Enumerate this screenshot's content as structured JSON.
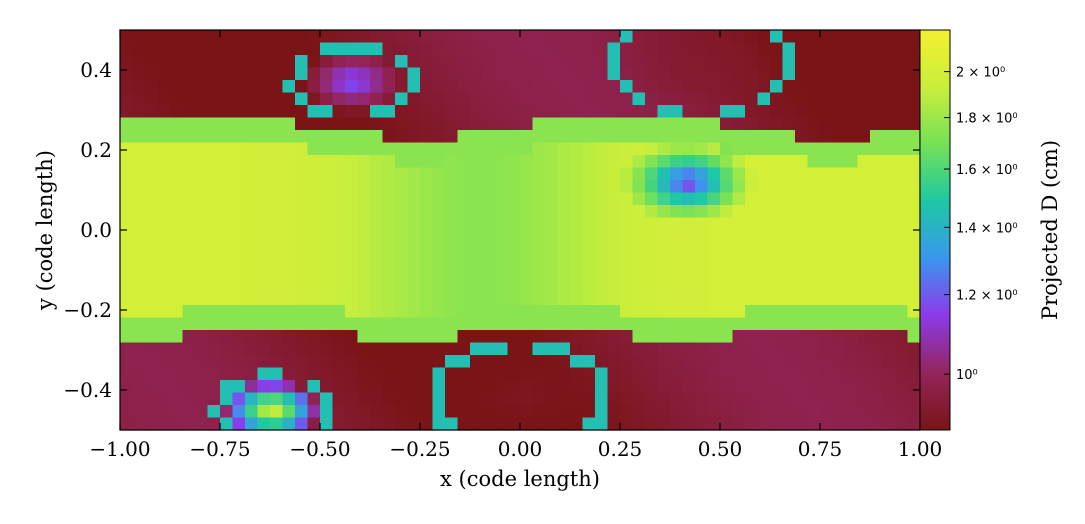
{
  "chart_data": {
    "type": "heatmap",
    "title": "",
    "xlabel": "x  (code length)",
    "ylabel": "y  (code length)",
    "xlim": [
      -1.0,
      1.0
    ],
    "ylim": [
      -0.5,
      0.5
    ],
    "x_ticks": [
      -1.0,
      -0.75,
      -0.5,
      -0.25,
      0.0,
      0.25,
      0.5,
      0.75,
      1.0
    ],
    "x_tick_labels": [
      "−1.00",
      "−0.75",
      "−0.50",
      "−0.25",
      "0.00",
      "0.25",
      "0.50",
      "0.75",
      "1.00"
    ],
    "y_ticks": [
      0.4,
      0.2,
      0.0,
      -0.2,
      -0.4
    ],
    "y_tick_labels": [
      "0.4",
      "0.2",
      "0.0",
      "−0.2",
      "−0.4"
    ],
    "grid": {
      "nx": 64,
      "ny": 32
    },
    "colorbar": {
      "label": "Projected D  (cm)",
      "scale": "log",
      "vmin": 0.88,
      "vmax": 2.2,
      "ticks": [
        2.0,
        1.8,
        1.6,
        1.4,
        1.2,
        1.0
      ],
      "tick_labels": [
        "2 × 10⁰",
        "1.8 × 10⁰",
        "1.6 × 10⁰",
        "1.4 × 10⁰",
        "1.2 × 10⁰",
        "10⁰"
      ],
      "colormap": [
        "#7a1416",
        "#93255a",
        "#8c3aea",
        "#3b96ee",
        "#1dc8a4",
        "#74e156",
        "#c9ee3c",
        "#f3f02d"
      ]
    },
    "field": {
      "low_value": 0.92,
      "high_value": 2.0,
      "interface_value": 1.75,
      "band_center": 0.0,
      "band_half_width": 0.23,
      "regions": [
        {
          "desc": "upper-left purple vortex",
          "cx": -0.42,
          "cy": 0.37,
          "r": 0.13,
          "value": 1.2
        },
        {
          "desc": "right spiral vortex",
          "cx": 0.42,
          "cy": 0.12,
          "r": 0.17,
          "value": 1.1
        },
        {
          "desc": "lower-left bright blob",
          "cx": -0.62,
          "cy": -0.45,
          "r": 0.12,
          "value": 2.0
        },
        {
          "desc": "dark lower-middle",
          "cx": 0.0,
          "cy": -0.42,
          "r": 0.2,
          "value": 0.9
        },
        {
          "desc": "dark upper-right",
          "cx": 0.45,
          "cy": 0.42,
          "r": 0.2,
          "value": 0.92
        }
      ]
    }
  }
}
